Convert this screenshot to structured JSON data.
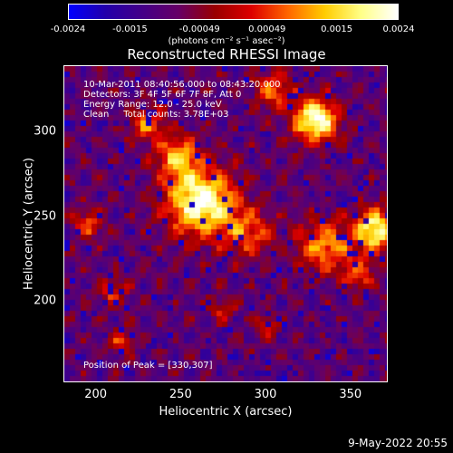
{
  "colorbar": {
    "ticks": [
      "-0.0024",
      "-0.0015",
      "-0.00049",
      "0.00049",
      "0.0015",
      "0.0024"
    ],
    "units_label": "(photons cm⁻² s⁻¹ asec⁻²)",
    "colors": [
      "#0000ff",
      "#2200aa",
      "#440088",
      "#660066",
      "#990000",
      "#dd0000",
      "#ff6600",
      "#ffcc00",
      "#ffff88",
      "#ffffff"
    ]
  },
  "title": "Reconstructed RHESSI Image",
  "info": {
    "time_range": "10-Mar-2011 08:40:56.000 to 08:43:20.000",
    "detectors": "Detectors: 3F 4F 5F 6F 7F 8F, Att 0",
    "energy": "Energy Range: 12.0 - 25.0 keV",
    "method": "Clean     Total counts: 3.78E+03",
    "peak": "Position of Peak = [330,307]"
  },
  "axes": {
    "x_label": "Heliocentric X (arcsec)",
    "y_label": "Heliocentric Y (arcsec)",
    "x_ticks": [
      "200",
      "250",
      "300",
      "350"
    ],
    "y_ticks": [
      "300",
      "250",
      "200"
    ],
    "x_range": [
      181,
      372
    ],
    "y_range": [
      152,
      339
    ]
  },
  "image": {
    "peak_xy": [
      330,
      307
    ],
    "sources": [
      {
        "x": 330,
        "y": 307,
        "amp": 1.0,
        "sigma": 9
      },
      {
        "x": 262,
        "y": 258,
        "amp": 1.0,
        "sigma": 14
      },
      {
        "x": 248,
        "y": 285,
        "amp": 0.65,
        "sigma": 9
      },
      {
        "x": 230,
        "y": 305,
        "amp": 0.55,
        "sigma": 7
      },
      {
        "x": 365,
        "y": 242,
        "amp": 0.9,
        "sigma": 9
      },
      {
        "x": 335,
        "y": 232,
        "amp": 0.6,
        "sigma": 11
      },
      {
        "x": 290,
        "y": 240,
        "amp": 0.5,
        "sigma": 10
      },
      {
        "x": 305,
        "y": 325,
        "amp": 0.5,
        "sigma": 8
      },
      {
        "x": 195,
        "y": 245,
        "amp": 0.45,
        "sigma": 6
      },
      {
        "x": 210,
        "y": 205,
        "amp": 0.4,
        "sigma": 6
      },
      {
        "x": 215,
        "y": 175,
        "amp": 0.4,
        "sigma": 5
      },
      {
        "x": 300,
        "y": 185,
        "amp": 0.35,
        "sigma": 5
      },
      {
        "x": 275,
        "y": 195,
        "amp": 0.35,
        "sigma": 5
      },
      {
        "x": 355,
        "y": 215,
        "amp": 0.45,
        "sigma": 7
      }
    ]
  },
  "footer": "9-May-2022 20:55"
}
